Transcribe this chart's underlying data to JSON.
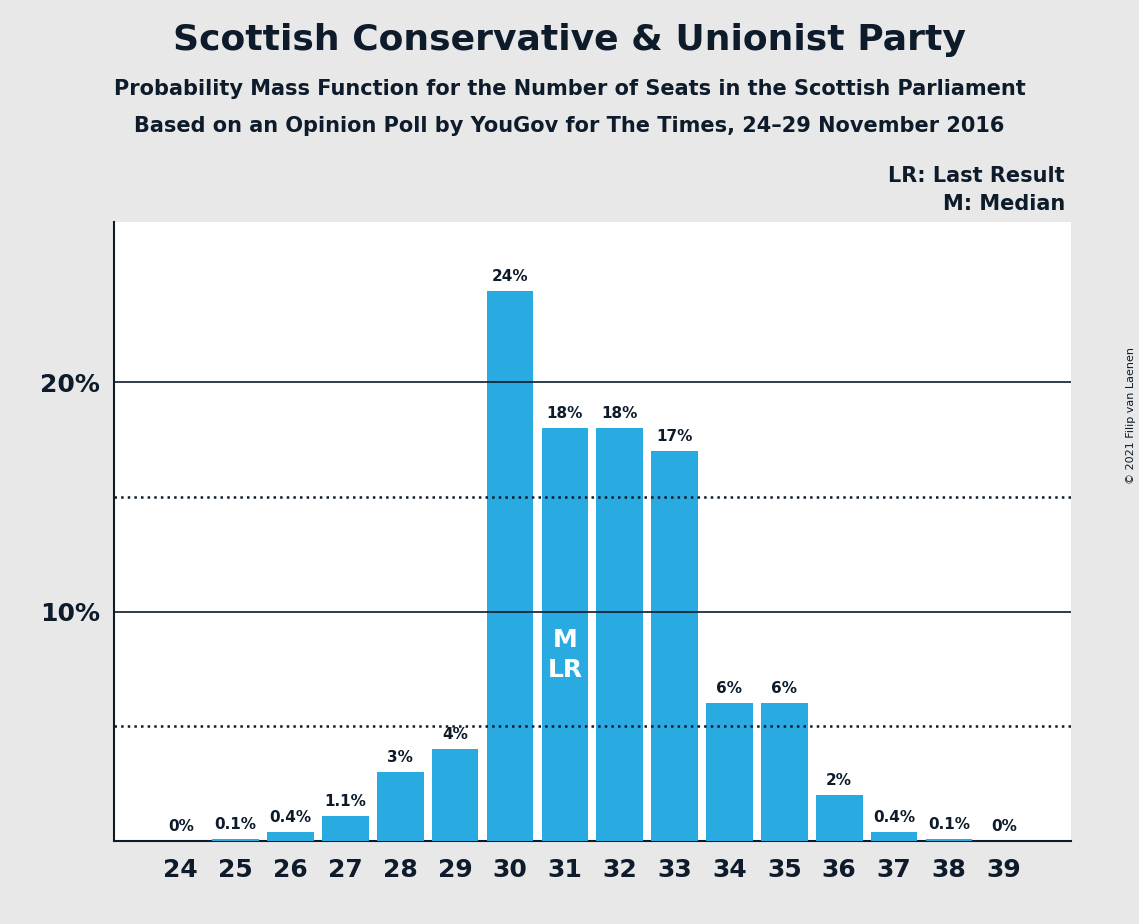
{
  "title": "Scottish Conservative & Unionist Party",
  "subtitle1": "Probability Mass Function for the Number of Seats in the Scottish Parliament",
  "subtitle2": "Based on an Opinion Poll by YouGov for The Times, 24–29 November 2016",
  "copyright": "© 2021 Filip van Laenen",
  "categories": [
    24,
    25,
    26,
    27,
    28,
    29,
    30,
    31,
    32,
    33,
    34,
    35,
    36,
    37,
    38,
    39
  ],
  "values": [
    0.0,
    0.1,
    0.4,
    1.1,
    3.0,
    4.0,
    24.0,
    18.0,
    18.0,
    17.0,
    6.0,
    6.0,
    2.0,
    0.4,
    0.1,
    0.0
  ],
  "labels": [
    "0%",
    "0.1%",
    "0.4%",
    "1.1%",
    "3%",
    "4%",
    "24%",
    "18%",
    "18%",
    "17%",
    "6%",
    "6%",
    "2%",
    "0.4%",
    "0.1%",
    "0%"
  ],
  "bar_color": "#29ABE2",
  "background_color": "#E8E8E8",
  "plot_background": "#FFFFFF",
  "text_color": "#0D1B2A",
  "median_seat": 31,
  "last_result_seat": 31,
  "dotted_line_values": [
    5.0,
    15.0
  ],
  "ylim": [
    0,
    27
  ],
  "legend_lr": "LR: Last Result",
  "legend_m": "M: Median",
  "label_fontsize": 11,
  "tick_fontsize": 18,
  "title_fontsize": 26,
  "subtitle_fontsize": 15,
  "legend_fontsize": 15
}
